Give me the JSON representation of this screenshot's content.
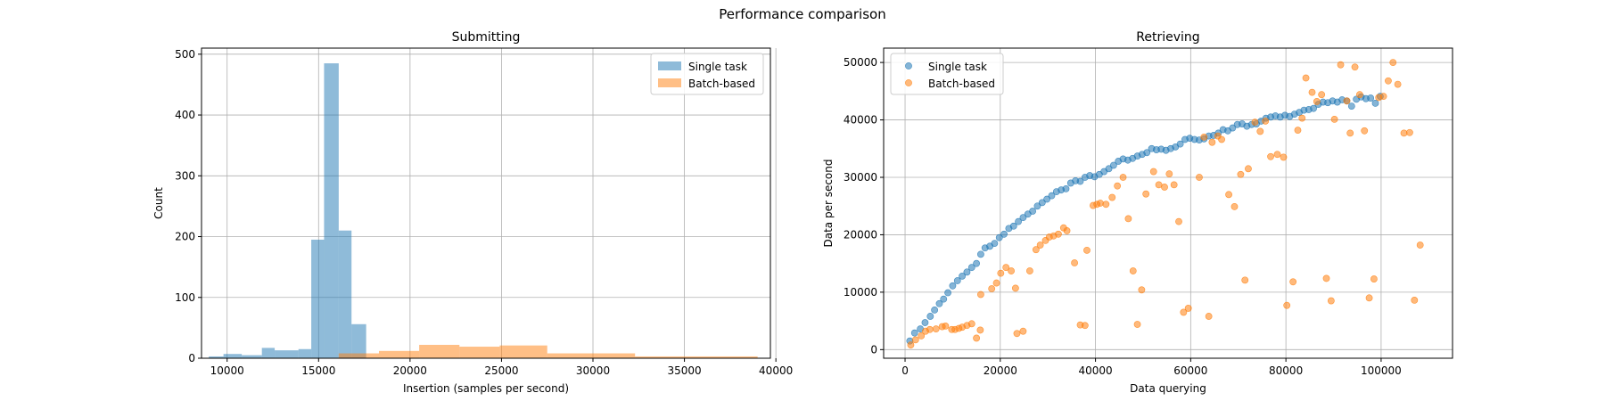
{
  "figure": {
    "suptitle": "Performance comparison"
  },
  "colors": {
    "blue": "#1f77b4",
    "orange": "#ff7f0e",
    "grid": "#b0b0b0"
  },
  "chart_data": [
    {
      "type": "bar",
      "subtype": "histogram",
      "title": "Submitting",
      "xlabel": "Insertion (samples per second)",
      "ylabel": "Count",
      "xlim": [
        8600,
        39700
      ],
      "ylim": [
        0,
        510
      ],
      "xticks": [
        10000,
        15000,
        20000,
        25000,
        30000,
        35000,
        40000
      ],
      "xtick_labels": [
        "10000",
        "15000",
        "20000",
        "25000",
        "30000",
        "35000",
        "40000"
      ],
      "yticks": [
        0,
        100,
        200,
        300,
        400,
        500
      ],
      "ytick_labels": [
        "0",
        "100",
        "200",
        "300",
        "400",
        "500"
      ],
      "grid": true,
      "legend": "upper right",
      "series": [
        {
          "name": "Single task",
          "color": "#1f77b4",
          "alpha": 0.5,
          "bins": [
            {
              "x0": 9000,
              "x1": 9800,
              "count": 3
            },
            {
              "x0": 9800,
              "x1": 10800,
              "count": 7
            },
            {
              "x0": 10800,
              "x1": 11900,
              "count": 5
            },
            {
              "x0": 11900,
              "x1": 12600,
              "count": 17
            },
            {
              "x0": 12600,
              "x1": 13900,
              "count": 13
            },
            {
              "x0": 13900,
              "x1": 14600,
              "count": 15
            },
            {
              "x0": 14600,
              "x1": 15300,
              "count": 195
            },
            {
              "x0": 15300,
              "x1": 16100,
              "count": 485
            },
            {
              "x0": 16100,
              "x1": 16800,
              "count": 210
            },
            {
              "x0": 16800,
              "x1": 17600,
              "count": 56
            }
          ]
        },
        {
          "name": "Batch-based",
          "color": "#ff7f0e",
          "alpha": 0.5,
          "bins": [
            {
              "x0": 16100,
              "x1": 18300,
              "count": 8
            },
            {
              "x0": 18300,
              "x1": 20500,
              "count": 12
            },
            {
              "x0": 20500,
              "x1": 22700,
              "count": 22
            },
            {
              "x0": 22700,
              "x1": 24900,
              "count": 19
            },
            {
              "x0": 24900,
              "x1": 27500,
              "count": 21
            },
            {
              "x0": 27500,
              "x1": 32300,
              "count": 8
            },
            {
              "x0": 32300,
              "x1": 39000,
              "count": 3
            }
          ]
        }
      ]
    },
    {
      "type": "scatter",
      "title": "Retrieving",
      "xlabel": "Data querying",
      "ylabel": "Data per second",
      "xlim": [
        -4500,
        115000
      ],
      "ylim": [
        -1500,
        52500
      ],
      "xticks": [
        0,
        20000,
        40000,
        60000,
        80000,
        100000
      ],
      "xtick_labels": [
        "0",
        "20000",
        "40000",
        "60000",
        "80000",
        "100000"
      ],
      "yticks": [
        0,
        10000,
        20000,
        30000,
        40000,
        50000
      ],
      "ytick_labels": [
        "0",
        "10000",
        "20000",
        "30000",
        "40000",
        "50000"
      ],
      "grid": true,
      "legend": "upper left",
      "series": [
        {
          "name": "Single task",
          "color": "#1f77b4",
          "alpha": 0.55,
          "points": [
            [
              1000,
              1500
            ],
            [
              2000,
              2900
            ],
            [
              3200,
              3600
            ],
            [
              4200,
              4700
            ],
            [
              5300,
              5800
            ],
            [
              6200,
              6900
            ],
            [
              7200,
              8000
            ],
            [
              8100,
              8800
            ],
            [
              9000,
              9900
            ],
            [
              10000,
              11100
            ],
            [
              11000,
              12000
            ],
            [
              12000,
              12800
            ],
            [
              13000,
              13500
            ],
            [
              14000,
              14300
            ],
            [
              15000,
              15000
            ],
            [
              15900,
              16600
            ],
            [
              16800,
              17700
            ],
            [
              17800,
              18000
            ],
            [
              18800,
              18500
            ],
            [
              19800,
              19500
            ],
            [
              20800,
              20100
            ],
            [
              21800,
              21100
            ],
            [
              22800,
              21500
            ],
            [
              23800,
              22300
            ],
            [
              24800,
              23000
            ],
            [
              25800,
              23600
            ],
            [
              26800,
              24100
            ],
            [
              27800,
              25000
            ],
            [
              28800,
              25600
            ],
            [
              29800,
              26200
            ],
            [
              30800,
              26800
            ],
            [
              31800,
              27500
            ],
            [
              32800,
              27800
            ],
            [
              33800,
              28000
            ],
            [
              34800,
              29000
            ],
            [
              35800,
              29400
            ],
            [
              36800,
              29300
            ],
            [
              37800,
              30000
            ],
            [
              38800,
              30300
            ],
            [
              39800,
              30100
            ],
            [
              40800,
              30500
            ],
            [
              41800,
              31000
            ],
            [
              42800,
              31500
            ],
            [
              43800,
              32100
            ],
            [
              44800,
              32800
            ],
            [
              45800,
              33200
            ],
            [
              46800,
              33000
            ],
            [
              47800,
              33300
            ],
            [
              48800,
              33700
            ],
            [
              49800,
              34000
            ],
            [
              50800,
              34300
            ],
            [
              51800,
              35000
            ],
            [
              52800,
              34800
            ],
            [
              53800,
              34900
            ],
            [
              54800,
              34700
            ],
            [
              55800,
              35000
            ],
            [
              56800,
              35300
            ],
            [
              57800,
              35800
            ],
            [
              58800,
              36600
            ],
            [
              59800,
              36800
            ],
            [
              60800,
              36600
            ],
            [
              61800,
              36500
            ],
            [
              62800,
              36700
            ],
            [
              63800,
              37200
            ],
            [
              64800,
              37300
            ],
            [
              65800,
              37700
            ],
            [
              66800,
              38300
            ],
            [
              67800,
              38100
            ],
            [
              68800,
              38600
            ],
            [
              69800,
              39200
            ],
            [
              70800,
              39300
            ],
            [
              71800,
              38900
            ],
            [
              72800,
              39200
            ],
            [
              73800,
              39300
            ],
            [
              74800,
              39800
            ],
            [
              75800,
              40300
            ],
            [
              76800,
              40500
            ],
            [
              77800,
              40700
            ],
            [
              78800,
              40500
            ],
            [
              79800,
              40800
            ],
            [
              80800,
              40600
            ],
            [
              81800,
              41000
            ],
            [
              82800,
              41300
            ],
            [
              83800,
              41700
            ],
            [
              84800,
              41800
            ],
            [
              85800,
              42000
            ],
            [
              86800,
              42700
            ],
            [
              87800,
              43100
            ],
            [
              88800,
              43000
            ],
            [
              89800,
              43300
            ],
            [
              90800,
              43100
            ],
            [
              91800,
              43500
            ],
            [
              92800,
              43300
            ],
            [
              93800,
              42400
            ],
            [
              94800,
              43600
            ],
            [
              95800,
              44000
            ],
            [
              96800,
              43700
            ],
            [
              97800,
              43800
            ],
            [
              98800,
              42900
            ],
            [
              99800,
              44100
            ]
          ]
        },
        {
          "name": "Batch-based",
          "color": "#ff7f0e",
          "alpha": 0.55,
          "points": [
            [
              1200,
              800
            ],
            [
              2200,
              1700
            ],
            [
              3400,
              2400
            ],
            [
              4300,
              3200
            ],
            [
              5200,
              3500
            ],
            [
              6500,
              3600
            ],
            [
              7800,
              4000
            ],
            [
              8500,
              4100
            ],
            [
              9800,
              3500
            ],
            [
              10500,
              3500
            ],
            [
              11300,
              3700
            ],
            [
              12000,
              3900
            ],
            [
              13000,
              4200
            ],
            [
              14000,
              4500
            ],
            [
              15000,
              2000
            ],
            [
              15800,
              3400
            ],
            [
              15900,
              9600
            ],
            [
              18200,
              10600
            ],
            [
              19200,
              11600
            ],
            [
              20100,
              13300
            ],
            [
              21200,
              14300
            ],
            [
              22300,
              13700
            ],
            [
              23200,
              10700
            ],
            [
              23500,
              2800
            ],
            [
              24800,
              3200
            ],
            [
              26200,
              13700
            ],
            [
              27500,
              17400
            ],
            [
              28400,
              18200
            ],
            [
              29500,
              19000
            ],
            [
              30300,
              19600
            ],
            [
              31200,
              19800
            ],
            [
              32200,
              20100
            ],
            [
              33300,
              21200
            ],
            [
              34000,
              20700
            ],
            [
              35600,
              15100
            ],
            [
              36800,
              4300
            ],
            [
              37800,
              4200
            ],
            [
              38200,
              17300
            ],
            [
              39500,
              25100
            ],
            [
              40300,
              25300
            ],
            [
              41000,
              25500
            ],
            [
              42200,
              25300
            ],
            [
              43500,
              26500
            ],
            [
              44600,
              28500
            ],
            [
              45800,
              30000
            ],
            [
              46900,
              22800
            ],
            [
              47900,
              13700
            ],
            [
              48800,
              4400
            ],
            [
              49700,
              10400
            ],
            [
              50600,
              27100
            ],
            [
              52200,
              31000
            ],
            [
              53300,
              28700
            ],
            [
              54500,
              28300
            ],
            [
              55500,
              30600
            ],
            [
              56500,
              28700
            ],
            [
              57500,
              22300
            ],
            [
              58500,
              6500
            ],
            [
              59500,
              7200
            ],
            [
              61800,
              30000
            ],
            [
              62800,
              37000
            ],
            [
              63800,
              5800
            ],
            [
              64500,
              36100
            ],
            [
              65700,
              37200
            ],
            [
              66500,
              36600
            ],
            [
              68000,
              27000
            ],
            [
              69200,
              24900
            ],
            [
              70500,
              30500
            ],
            [
              71400,
              12100
            ],
            [
              72100,
              31500
            ],
            [
              73500,
              39600
            ],
            [
              74600,
              38000
            ],
            [
              75700,
              39800
            ],
            [
              76800,
              33600
            ],
            [
              78200,
              34000
            ],
            [
              79500,
              33500
            ],
            [
              80200,
              7700
            ],
            [
              81500,
              11800
            ],
            [
              82500,
              38200
            ],
            [
              83400,
              40300
            ],
            [
              84200,
              47300
            ],
            [
              85500,
              44800
            ],
            [
              86500,
              43200
            ],
            [
              87500,
              44400
            ],
            [
              88500,
              12400
            ],
            [
              89500,
              8500
            ],
            [
              90200,
              40100
            ],
            [
              91500,
              49600
            ],
            [
              92800,
              43300
            ],
            [
              93500,
              37700
            ],
            [
              94500,
              49200
            ],
            [
              95500,
              44400
            ],
            [
              96500,
              38100
            ],
            [
              97500,
              9000
            ],
            [
              98500,
              12300
            ],
            [
              99500,
              43900
            ],
            [
              100500,
              44100
            ],
            [
              101500,
              46800
            ],
            [
              102500,
              50000
            ],
            [
              103500,
              46200
            ],
            [
              104800,
              37700
            ],
            [
              106000,
              37800
            ],
            [
              107000,
              8600
            ],
            [
              108200,
              18200
            ]
          ]
        }
      ]
    }
  ]
}
